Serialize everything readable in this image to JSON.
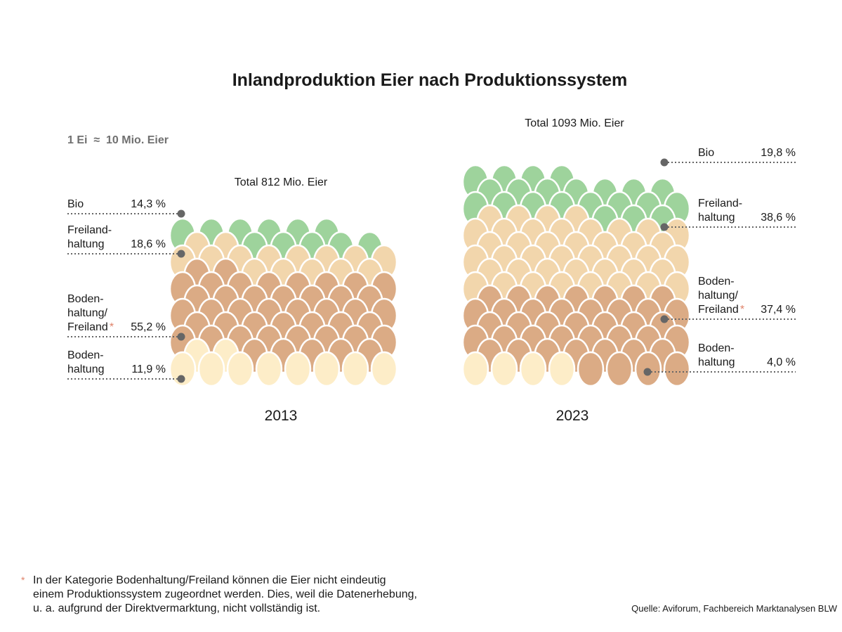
{
  "title": "Inlandproduktion Eier nach Produktionssystem",
  "legend_note": "1 Ei  ≈  10 Mio. Eier",
  "colors": {
    "bio": "#9ed39c",
    "freiland": "#f2d6ac",
    "boden_freiland": "#dbab85",
    "boden": "#fdedc8",
    "dot": "#666666",
    "asterisk": "#e0836a"
  },
  "chart_data": [
    {
      "type": "pictogram",
      "year": "2013",
      "total_label": "Total 812 Mio. Eier",
      "total": 812,
      "unit": "Mio. Eier",
      "categories": [
        {
          "key": "bio",
          "line1": "Bio",
          "line2": "",
          "line3": "",
          "value": 14.3,
          "value_label": "14,3 %",
          "asterisk": false
        },
        {
          "key": "freiland",
          "line1": "Freiland-",
          "line2": "haltung",
          "line3": "",
          "value": 18.6,
          "value_label": "18,6 %",
          "asterisk": false
        },
        {
          "key": "boden_freiland",
          "line1": "Boden-",
          "line2": "haltung/",
          "line3": "Freiland",
          "value": 55.2,
          "value_label": "55,2 %",
          "asterisk": true
        },
        {
          "key": "boden",
          "line1": "Boden-",
          "line2": "haltung",
          "line3": "",
          "value": 11.9,
          "value_label": "11,9 %",
          "asterisk": false
        }
      ]
    },
    {
      "type": "pictogram",
      "year": "2023",
      "total_label": "Total 1093 Mio. Eier",
      "total": 1093,
      "unit": "Mio. Eier",
      "categories": [
        {
          "key": "bio",
          "line1": "Bio",
          "line2": "",
          "line3": "",
          "value": 19.8,
          "value_label": "19,8 %",
          "asterisk": false
        },
        {
          "key": "freiland",
          "line1": "Freiland-",
          "line2": "haltung",
          "line3": "",
          "value": 38.6,
          "value_label": "38,6 %",
          "asterisk": false
        },
        {
          "key": "boden_freiland",
          "line1": "Boden-",
          "line2": "haltung/",
          "line3": "Freiland",
          "value": 37.4,
          "value_label": "37,4 %",
          "asterisk": true
        },
        {
          "key": "boden",
          "line1": "Boden-",
          "line2": "haltung",
          "line3": "",
          "value": 4.0,
          "value_label": "4,0 %",
          "asterisk": false
        }
      ]
    }
  ],
  "footnote": {
    "marker": "*",
    "line1": "In der Kategorie Bodenhaltung/Freiland können die Eier nicht eindeutig",
    "line2": "einem Produktionssystem zugeordnet werden. Dies, weil die Datenerhebung,",
    "line3": "u. a. aufgrund der Direktvermarktung, nicht vollständig ist."
  },
  "source": "Quelle: Aviforum, Fachbereich Marktanalysen BLW"
}
